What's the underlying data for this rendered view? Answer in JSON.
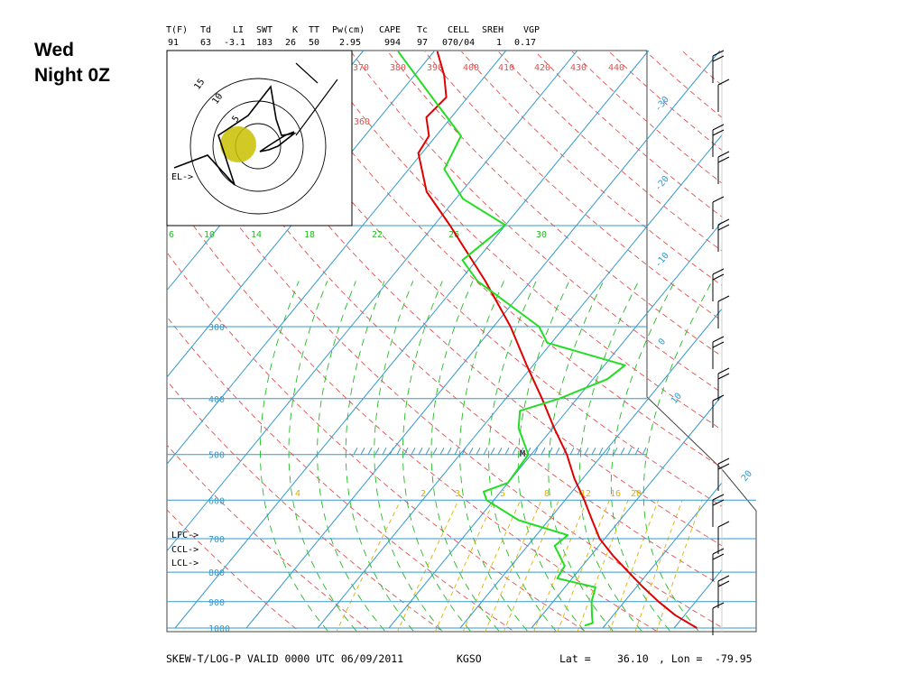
{
  "slide": {
    "title_line1": "Wed",
    "title_line2": "Night 0Z"
  },
  "indices": {
    "headers": [
      "T(F)",
      "Td",
      "LI",
      "SWT",
      "K",
      "TT",
      "Pw(cm)",
      "CAPE",
      "Tc",
      "CELL",
      "SREH",
      "VGP"
    ],
    "values": [
      "91",
      "63",
      "-3.1",
      "183",
      "26",
      "50",
      "2.95",
      "994",
      "97",
      "070/04",
      "1",
      "0.17"
    ]
  },
  "footer": {
    "title": "SKEW-T/LOG-P VALID 0000 UTC 06/09/2011",
    "station": "KGSO",
    "lat_label": "Lat =",
    "lat_value": "36.10",
    "lon_label": ", Lon =",
    "lon_value": "-79.95"
  },
  "chart_data": {
    "type": "skew-t log-p",
    "pressure_levels": [
      {
        "p": 300,
        "label": "300"
      },
      {
        "p": 400,
        "label": "400"
      },
      {
        "p": 500,
        "label": "500"
      },
      {
        "p": 600,
        "label": "600"
      },
      {
        "p": 700,
        "label": "700"
      },
      {
        "p": 800,
        "label": "800"
      },
      {
        "p": 900,
        "label": "900"
      },
      {
        "p": 1000,
        "label": "1000"
      }
    ],
    "isotherm_labels": [
      "-30",
      "-20",
      "-10",
      "0",
      "10",
      "20"
    ],
    "theta_e_labels": [
      "370",
      "380",
      "390",
      "400",
      "410",
      "420",
      "430",
      "440",
      "360"
    ],
    "mixing_ratio_labels": [
      "4",
      "2",
      "3",
      "5",
      "8",
      "12",
      "16",
      "20"
    ],
    "upper_labels": [
      "6",
      "10",
      "14",
      "18",
      "22",
      "26",
      "30"
    ],
    "level_markers": [
      "LFC->",
      "CCL->",
      "LCL->",
      "EL->"
    ],
    "hodograph_ring_labels": [
      "15",
      "10",
      "5"
    ],
    "storm_marker": "M",
    "series": [
      {
        "color": "#e00000",
        "values": [
          [
            1000,
            33.2
          ],
          [
            950,
            28.7
          ],
          [
            900,
            24.8
          ],
          [
            850,
            21.0
          ],
          [
            800,
            17.2
          ],
          [
            750,
            13.2
          ],
          [
            700,
            9.3
          ],
          [
            650,
            6.1
          ],
          [
            600,
            2.7
          ],
          [
            550,
            -1.2
          ],
          [
            500,
            -5.0
          ],
          [
            450,
            -9.8
          ],
          [
            400,
            -14.9
          ],
          [
            350,
            -20.9
          ],
          [
            300,
            -27.6
          ],
          [
            250,
            -36.4
          ],
          [
            200,
            -47.8
          ],
          [
            175,
            -54.9
          ],
          [
            150,
            -60.5
          ],
          [
            140,
            -61.0
          ],
          [
            130,
            -63.5
          ],
          [
            120,
            -63.0
          ],
          [
            110,
            -65.8
          ],
          [
            100,
            -69.5
          ]
        ]
      },
      {
        "color": "#22dd22",
        "values": [
          [
            990,
            17.2
          ],
          [
            980,
            18.0
          ],
          [
            950,
            17.0
          ],
          [
            900,
            15.4
          ],
          [
            850,
            14.3
          ],
          [
            820,
            7.9
          ],
          [
            780,
            7.5
          ],
          [
            720,
            3.8
          ],
          [
            690,
            4.4
          ],
          [
            650,
            -4.2
          ],
          [
            600,
            -11.0
          ],
          [
            580,
            -12.4
          ],
          [
            560,
            -10.0
          ],
          [
            500,
            -10.4
          ],
          [
            450,
            -14.8
          ],
          [
            420,
            -16.6
          ],
          [
            400,
            -12.5
          ],
          [
            370,
            -8.0
          ],
          [
            350,
            -7.1
          ],
          [
            320,
            -20.6
          ],
          [
            300,
            -23.6
          ],
          [
            250,
            -37.5
          ],
          [
            230,
            -42.0
          ],
          [
            200,
            -40.0
          ],
          [
            180,
            -49.0
          ],
          [
            160,
            -55.0
          ],
          [
            140,
            -56.5
          ],
          [
            120,
            -65.0
          ],
          [
            100,
            -75.0
          ]
        ]
      }
    ],
    "ylabel": "",
    "xlabel": ""
  },
  "colors": {
    "temperature": "#e00000",
    "dewpoint": "#22dd22",
    "isobar": "#3399cc",
    "isotherm": "#3399cc",
    "dry_adiabat": "#e05050",
    "moist_adiabat": "#22bb22",
    "mixing_ratio": "#e0b000",
    "hodograph_blob": "#c8c000"
  }
}
